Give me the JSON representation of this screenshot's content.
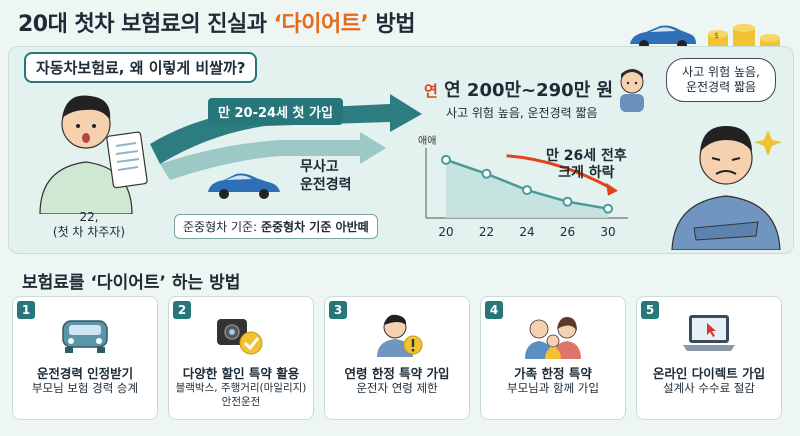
{
  "title": {
    "prefix": "20대 첫차 보험료의 진실과 ",
    "highlight": "‘다이어트’",
    "suffix": " 방법"
  },
  "section_tag": "자동차보험료, 왜 이렇게 비쌀까?",
  "left": {
    "person_label_1": "22,",
    "person_label_2": "(첫 차 차주자)"
  },
  "arrows": {
    "first_signup": "만 20-24세 첫 가입"
  },
  "cost": {
    "prefix": "연",
    "value": "연 200만~290만 원",
    "subtitle": "사고 위험 높음, 운전경력 짧음"
  },
  "no_accident": {
    "line1": "무사고",
    "line2": "운전경력"
  },
  "standard": {
    "label": "준중형차 기준:",
    "value": "준중형차 기준 아반떼"
  },
  "chart_data": {
    "type": "line",
    "ylabel": "애애",
    "categories": [
      "20",
      "22",
      "24",
      "26",
      "30"
    ],
    "values": [
      100,
      88,
      74,
      64,
      58
    ],
    "note_line1": "만 26세 전후",
    "note_line2": "크게 하락",
    "colors": {
      "line": "#4a9a97",
      "area": "#bfe0db",
      "trend": "#e0431c"
    }
  },
  "bubble": {
    "line1": "사고 위험 높음,",
    "line2": "운전경력 짧음"
  },
  "bottom_title": "보험료를 ‘다이어트’ 하는 방법",
  "cards": [
    {
      "num": "1",
      "icon": "car-icon",
      "title": "운전경력 인정받기",
      "sub1": "부모님 보험 경력 승계",
      "sub2": ""
    },
    {
      "num": "2",
      "icon": "blackbox-icon",
      "title": "다양한 할인 특약 활용",
      "sub1": "블랙박스, 주행거리(마일리지)",
      "sub2": "안전운전"
    },
    {
      "num": "3",
      "icon": "driver-warning-icon",
      "title": "연령 한정 특약 가입",
      "sub1": "운전자 연령 제한",
      "sub2": ""
    },
    {
      "num": "4",
      "icon": "family-icon",
      "title": "가족 한정 특약",
      "sub1": "부모님과 함께 가입",
      "sub2": ""
    },
    {
      "num": "5",
      "icon": "laptop-icon",
      "title": "온라인 다이렉트 가입",
      "sub1": "설계사 수수료 절감",
      "sub2": ""
    }
  ]
}
